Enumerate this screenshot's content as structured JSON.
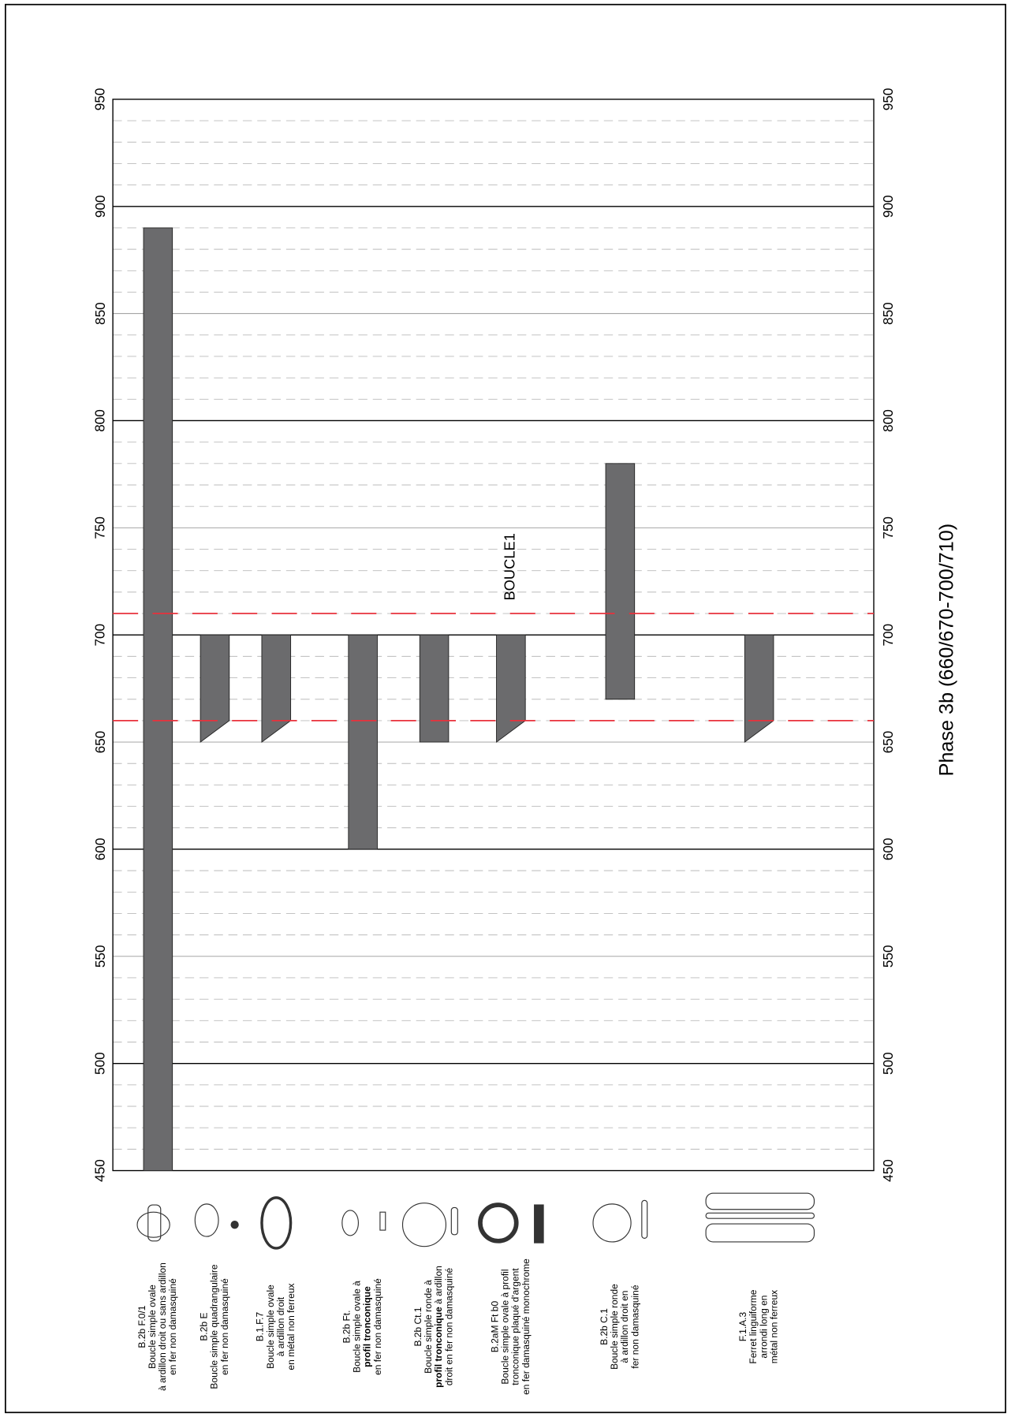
{
  "chart_data": {
    "type": "range-bar",
    "title": "Phase 3b (660/670-700/710)",
    "annotation": "BOUCLE1",
    "categories": [
      "B.2b F.0/1",
      "B.2b E",
      "B.1.F.7",
      "B.2b Ft.",
      "B.2b Ct.1",
      "B.2aM Ft b0",
      "B.2b C.1",
      "F.1.A.3"
    ],
    "descriptions": [
      [
        "Boucle simple ovale",
        "à ardillon droit ou sans ardillon",
        "en fer non damasquiné"
      ],
      [
        "Boucle simple quadrangulaire",
        "en fer non damasquiné"
      ],
      [
        "Boucle simple ovale",
        "à ardillon droit",
        "en métal non ferreux"
      ],
      [
        "Boucle simple ovale à",
        [
          {
            "text": "profil tronconique",
            "bold": true
          }
        ],
        "en fer non damasquiné"
      ],
      [
        "Boucle simple ronde à",
        [
          {
            "text": "profil tronconique",
            "bold": true
          },
          {
            "text": " à ardillon",
            "bold": false
          }
        ],
        "droit en fer non damasquiné"
      ],
      [
        "Boucle simple ovale à profil",
        "tronconique plaqué d'argent",
        "en fer damasquiné monochrome"
      ],
      [
        "Boucle simple ronde",
        "à ardillon droit en",
        "fer non damasquiné"
      ],
      [
        "Ferret linguiforme",
        "arrondi long en",
        "métal non ferreux"
      ]
    ],
    "low": [
      450,
      650,
      650,
      600,
      650,
      650,
      670,
      650
    ],
    "low_right": [
      450,
      660,
      660,
      600,
      650,
      660,
      670,
      660
    ],
    "high": [
      890,
      700,
      700,
      700,
      700,
      700,
      780,
      700
    ],
    "color": "#6b6b6d",
    "ylim": [
      450,
      950
    ],
    "yticks": [
      450,
      500,
      550,
      600,
      650,
      700,
      750,
      800,
      850,
      900,
      950
    ],
    "major_step": 100,
    "minor_step": 10,
    "grid": true,
    "reference_lines": [
      660,
      710
    ],
    "reference_color": "#e8323c"
  }
}
